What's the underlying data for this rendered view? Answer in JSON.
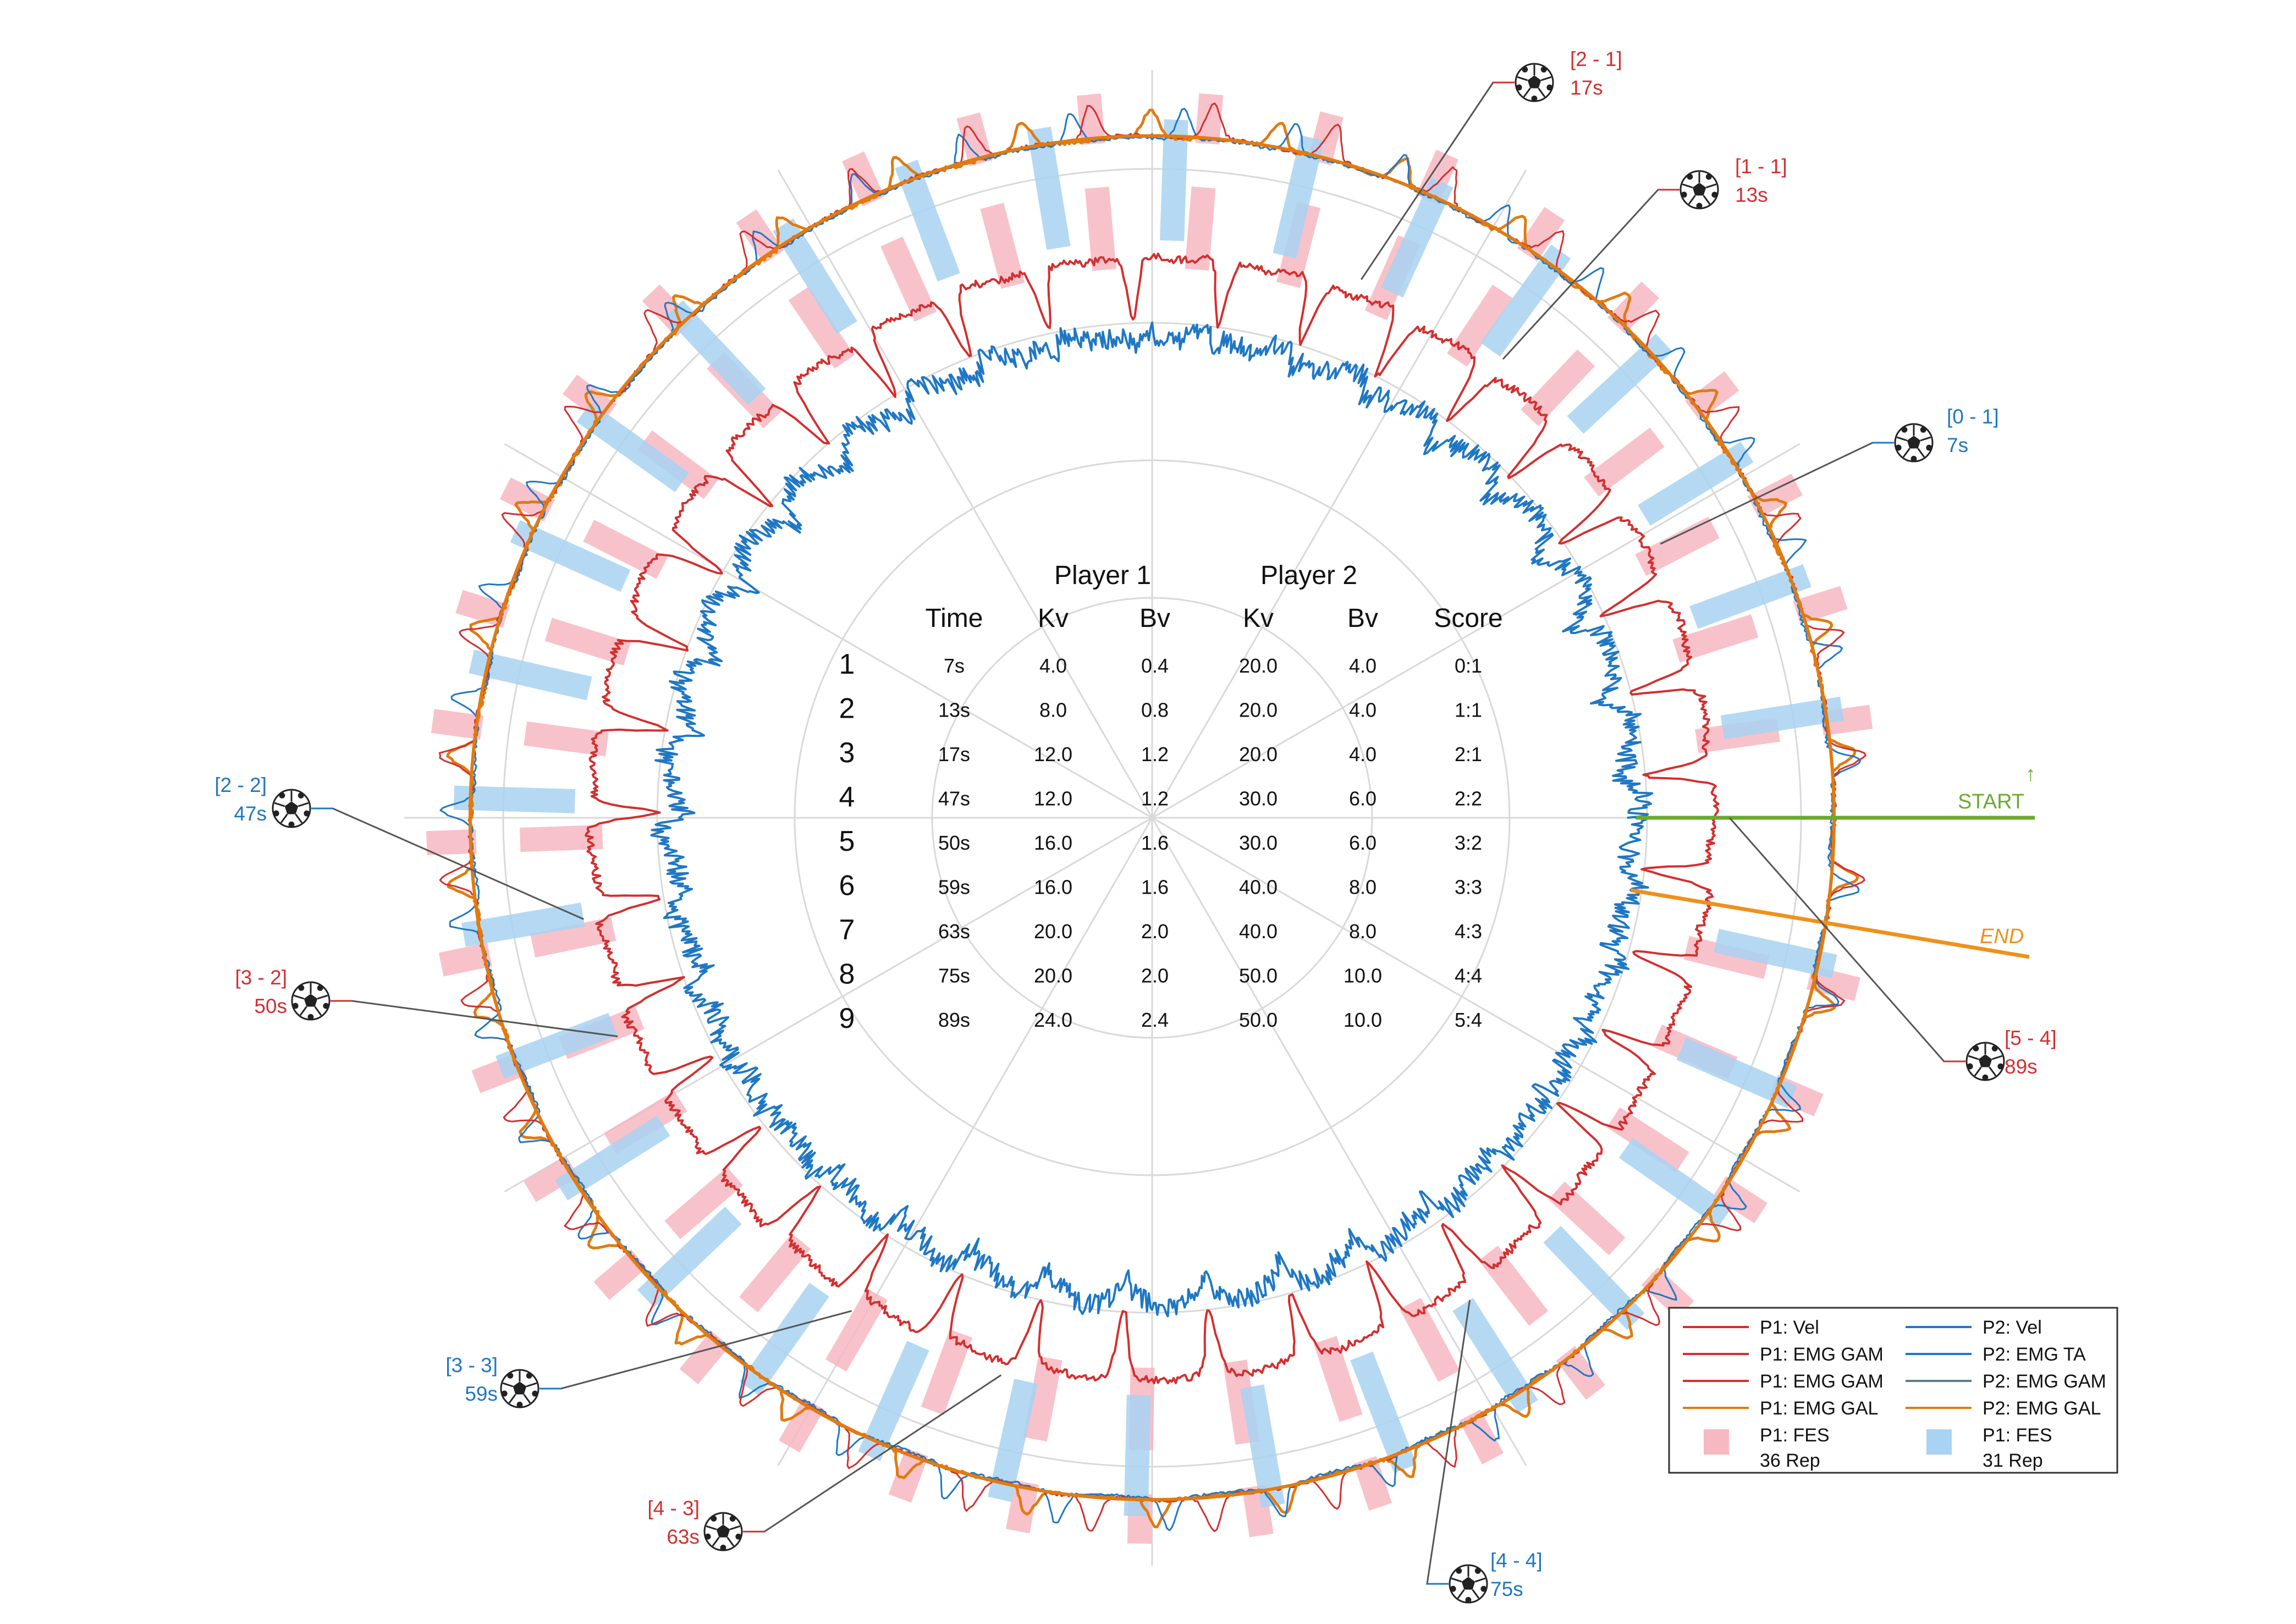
{
  "chart_data": {
    "type": "polar-line",
    "colors": {
      "p1_red": "#d32f2f",
      "p2_blue": "#1f77c4",
      "gal_orange": "#e07b12",
      "emg_gray": "#707070",
      "fes_pink": "#f7b8c2",
      "fes_blue": "#a9d3f2",
      "start_green": "#6aaa2e",
      "end_orange": "#f0901a"
    },
    "markers": {
      "start_label": "START",
      "start_arrow": "↑",
      "end_label": "END"
    },
    "goals": [
      {
        "score": "[0 - 1]",
        "time": "7s",
        "player": "P2"
      },
      {
        "score": "[1 - 1]",
        "time": "13s",
        "player": "P1"
      },
      {
        "score": "[2 - 1]",
        "time": "17s",
        "player": "P1"
      },
      {
        "score": "[2 - 2]",
        "time": "47s",
        "player": "P2"
      },
      {
        "score": "[3 - 2]",
        "time": "50s",
        "player": "P1"
      },
      {
        "score": "[3 - 3]",
        "time": "59s",
        "player": "P2"
      },
      {
        "score": "[4 - 3]",
        "time": "63s",
        "player": "P1"
      },
      {
        "score": "[4 - 4]",
        "time": "75s",
        "player": "P2"
      },
      {
        "score": "[5 - 4]",
        "time": "89s",
        "player": "P1"
      }
    ],
    "table": {
      "group_headers": [
        "Player 1",
        "Player 2"
      ],
      "columns": [
        "Time",
        "Kv",
        "Bv",
        "Kv",
        "Bv",
        "Score"
      ],
      "rows": [
        {
          "n": "1",
          "cells": [
            "7s",
            "4.0",
            "0.4",
            "20.0",
            "4.0",
            "0:1"
          ]
        },
        {
          "n": "2",
          "cells": [
            "13s",
            "8.0",
            "0.8",
            "20.0",
            "4.0",
            "1:1"
          ]
        },
        {
          "n": "3",
          "cells": [
            "17s",
            "12.0",
            "1.2",
            "20.0",
            "4.0",
            "2:1"
          ]
        },
        {
          "n": "4",
          "cells": [
            "47s",
            "12.0",
            "1.2",
            "30.0",
            "6.0",
            "2:2"
          ]
        },
        {
          "n": "5",
          "cells": [
            "50s",
            "16.0",
            "1.6",
            "30.0",
            "6.0",
            "3:2"
          ]
        },
        {
          "n": "6",
          "cells": [
            "59s",
            "16.0",
            "1.6",
            "40.0",
            "8.0",
            "3:3"
          ]
        },
        {
          "n": "7",
          "cells": [
            "63s",
            "20.0",
            "2.0",
            "40.0",
            "8.0",
            "4:3"
          ]
        },
        {
          "n": "8",
          "cells": [
            "75s",
            "20.0",
            "2.0",
            "50.0",
            "10.0",
            "4:4"
          ]
        },
        {
          "n": "9",
          "cells": [
            "89s",
            "24.0",
            "2.4",
            "50.0",
            "10.0",
            "5:4"
          ]
        }
      ]
    },
    "legend": {
      "placement": "bottom-right",
      "items": [
        {
          "label": "P1: Vel",
          "sub": "",
          "kind": "line",
          "color": "#d32f2f"
        },
        {
          "label": "P2: Vel",
          "sub": "",
          "kind": "line",
          "color": "#1f77c4"
        },
        {
          "label": "P1: EMG GAM",
          "sub": "",
          "kind": "line",
          "color": "#d32f2f"
        },
        {
          "label": "P2: EMG TA",
          "sub": "",
          "kind": "line",
          "color": "#1f77c4"
        },
        {
          "label": "P1: EMG GAM",
          "sub": "",
          "kind": "line",
          "color": "#d32f2f"
        },
        {
          "label": "P2: EMG GAM",
          "sub": "",
          "kind": "line",
          "color": "#5c7f86"
        },
        {
          "label": "P1: EMG GAL",
          "sub": "",
          "kind": "line",
          "color": "#e07b12"
        },
        {
          "label": "P2: EMG GAL",
          "sub": "",
          "kind": "line",
          "color": "#e07b12"
        },
        {
          "label": "P1: FES",
          "sub": "36 Rep",
          "kind": "patch",
          "color": "#f7b8c2"
        },
        {
          "label": "P1: FES",
          "sub": "31 Rep",
          "kind": "patch",
          "color": "#a9d3f2"
        }
      ]
    },
    "fes_counts": {
      "pink": 36,
      "blue": 31
    },
    "duration_s": 89,
    "grid": true
  }
}
